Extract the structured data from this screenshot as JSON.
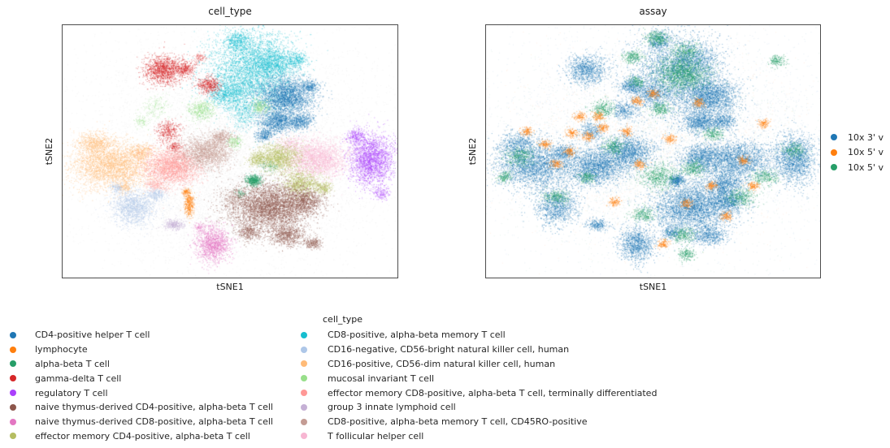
{
  "palette": {
    "blue": "#1f77b4",
    "orange": "#ff7f0e",
    "green": "#279e68",
    "red": "#d62728",
    "purple": "#aa40fc",
    "brown": "#8c564b",
    "pink": "#e377c2",
    "olive": "#b5bd61",
    "cyan": "#17becf",
    "lightblue": "#aec7e8",
    "lightorange": "#ffbb78",
    "lightgreen": "#98df8a",
    "salmon": "#ff9896",
    "lightpurple": "#c5b0d5",
    "rosybrown": "#c49c94",
    "lightpink": "#f7b6d2",
    "gray": "#b8b8b8"
  },
  "chart_data": [
    {
      "type": "scatter",
      "title": "cell_type",
      "xlabel": "tSNE1",
      "ylabel": "tSNE2",
      "axis_ticks": "none",
      "legend_title": "cell_type",
      "legend_position": "bottom-two-columns",
      "legend": [
        {
          "label": "CD4-positive helper T cell",
          "color": "#1f77b4"
        },
        {
          "label": "lymphocyte",
          "color": "#ff7f0e"
        },
        {
          "label": "alpha-beta T cell",
          "color": "#279e68"
        },
        {
          "label": "gamma-delta T cell",
          "color": "#d62728"
        },
        {
          "label": "regulatory T cell",
          "color": "#aa40fc"
        },
        {
          "label": "naive thymus-derived CD4-positive, alpha-beta T cell",
          "color": "#8c564b"
        },
        {
          "label": "naive thymus-derived CD8-positive, alpha-beta T cell",
          "color": "#e377c2"
        },
        {
          "label": "effector memory CD4-positive, alpha-beta T cell",
          "color": "#b5bd61"
        },
        {
          "label": "CD8-positive, alpha-beta memory T cell",
          "color": "#17becf"
        },
        {
          "label": "CD16-negative, CD56-bright natural killer cell, human",
          "color": "#aec7e8"
        },
        {
          "label": "CD16-positive, CD56-dim natural killer cell, human",
          "color": "#ffbb78"
        },
        {
          "label": "mucosal invariant T cell",
          "color": "#98df8a"
        },
        {
          "label": "effector memory CD8-positive, alpha-beta T cell, terminally differentiated",
          "color": "#ff9896"
        },
        {
          "label": "group 3 innate lymphoid cell",
          "color": "#c5b0d5"
        },
        {
          "label": "CD8-positive, alpha-beta memory T cell, CD45RO-positive",
          "color": "#c49c94"
        },
        {
          "label": "T follicular helper cell",
          "color": "#f7b6d2"
        }
      ],
      "blob_format": "[color, cx, cy, sx, sy, n, alpha?] normalized to axes box; gaussian cluster approximations of the t-SNE embedding",
      "blobs": [
        [
          "gray",
          0.52,
          0.42,
          0.24,
          0.22,
          6000,
          0.15
        ],
        [
          "gray",
          0.45,
          0.72,
          0.18,
          0.12,
          2500,
          0.15
        ],
        [
          "gray",
          0.66,
          0.6,
          0.14,
          0.14,
          1500,
          0.12
        ],
        [
          "cyan",
          0.565,
          0.185,
          0.065,
          0.085,
          4000
        ],
        [
          "cyan",
          0.52,
          0.06,
          0.018,
          0.018,
          350
        ],
        [
          "cyan",
          0.49,
          0.27,
          0.03,
          0.025,
          700
        ],
        [
          "cyan",
          0.625,
          0.145,
          0.035,
          0.03,
          900
        ],
        [
          "cyan",
          0.7,
          0.135,
          0.016,
          0.016,
          250
        ],
        [
          "cyan",
          0.54,
          0.35,
          0.02,
          0.03,
          400,
          0.35
        ],
        [
          "blue",
          0.667,
          0.281,
          0.042,
          0.038,
          2500
        ],
        [
          "blue",
          0.64,
          0.383,
          0.028,
          0.022,
          1000
        ],
        [
          "blue",
          0.712,
          0.38,
          0.018,
          0.016,
          450
        ],
        [
          "blue",
          0.6,
          0.437,
          0.013,
          0.012,
          250
        ],
        [
          "blue",
          0.74,
          0.24,
          0.012,
          0.012,
          200
        ],
        [
          "red",
          0.3,
          0.176,
          0.028,
          0.028,
          1300
        ],
        [
          "red",
          0.365,
          0.17,
          0.014,
          0.014,
          300
        ],
        [
          "red",
          0.435,
          0.236,
          0.017,
          0.017,
          450
        ],
        [
          "red",
          0.314,
          0.419,
          0.018,
          0.02,
          350
        ],
        [
          "red",
          0.333,
          0.479,
          0.012,
          0.012,
          150
        ],
        [
          "red",
          0.41,
          0.128,
          0.01,
          0.01,
          100,
          0.4
        ],
        [
          "lightgreen",
          0.413,
          0.335,
          0.02,
          0.02,
          450
        ],
        [
          "lightgreen",
          0.589,
          0.32,
          0.014,
          0.014,
          250
        ],
        [
          "lightgreen",
          0.512,
          0.46,
          0.012,
          0.012,
          180
        ],
        [
          "lightgreen",
          0.275,
          0.323,
          0.02,
          0.025,
          200,
          0.4
        ],
        [
          "lightgreen",
          0.234,
          0.383,
          0.012,
          0.012,
          100,
          0.4
        ],
        [
          "lightorange",
          0.145,
          0.553,
          0.06,
          0.047,
          3200
        ],
        [
          "lightorange",
          0.097,
          0.467,
          0.028,
          0.022,
          600
        ],
        [
          "lightorange",
          0.232,
          0.502,
          0.018,
          0.016,
          300
        ],
        [
          "lightorange",
          0.184,
          0.64,
          0.01,
          0.012,
          120
        ],
        [
          "salmon",
          0.326,
          0.559,
          0.042,
          0.037,
          2400
        ],
        [
          "salmon",
          0.275,
          0.633,
          0.015,
          0.012,
          200,
          0.4
        ],
        [
          "rosybrown",
          0.425,
          0.502,
          0.038,
          0.032,
          1900
        ],
        [
          "rosybrown",
          0.473,
          0.441,
          0.018,
          0.016,
          400
        ],
        [
          "lightpink",
          0.756,
          0.53,
          0.047,
          0.038,
          2400
        ],
        [
          "lightpink",
          0.679,
          0.47,
          0.02,
          0.016,
          300,
          0.45
        ],
        [
          "olive",
          0.645,
          0.524,
          0.033,
          0.028,
          1400
        ],
        [
          "olive",
          0.71,
          0.626,
          0.028,
          0.025,
          900
        ],
        [
          "olive",
          0.582,
          0.53,
          0.015,
          0.013,
          250
        ],
        [
          "olive",
          0.778,
          0.645,
          0.015,
          0.013,
          250
        ],
        [
          "purple",
          0.923,
          0.53,
          0.032,
          0.05,
          2200
        ],
        [
          "purple",
          0.874,
          0.438,
          0.015,
          0.015,
          250
        ],
        [
          "purple",
          0.95,
          0.665,
          0.012,
          0.012,
          150
        ],
        [
          "brown",
          0.616,
          0.719,
          0.06,
          0.05,
          4200
        ],
        [
          "brown",
          0.72,
          0.697,
          0.028,
          0.025,
          900
        ],
        [
          "brown",
          0.669,
          0.831,
          0.026,
          0.022,
          700
        ],
        [
          "brown",
          0.556,
          0.821,
          0.016,
          0.014,
          300
        ],
        [
          "brown",
          0.744,
          0.863,
          0.014,
          0.012,
          250
        ],
        [
          "brown",
          0.515,
          0.684,
          0.02,
          0.02,
          250,
          0.35
        ],
        [
          "pink",
          0.449,
          0.866,
          0.026,
          0.036,
          1400
        ],
        [
          "pink",
          0.41,
          0.802,
          0.01,
          0.01,
          120,
          0.4
        ],
        [
          "lightblue",
          0.21,
          0.719,
          0.032,
          0.036,
          1400
        ],
        [
          "lightblue",
          0.28,
          0.671,
          0.013,
          0.012,
          220
        ],
        [
          "lightblue",
          0.162,
          0.642,
          0.01,
          0.01,
          120
        ],
        [
          "orange",
          0.377,
          0.706,
          0.007,
          0.024,
          380
        ],
        [
          "orange",
          0.367,
          0.658,
          0.006,
          0.006,
          90
        ],
        [
          "lightpurple",
          0.333,
          0.789,
          0.016,
          0.011,
          320
        ],
        [
          "green",
          0.57,
          0.613,
          0.011,
          0.011,
          480
        ],
        [
          "green",
          0.613,
          0.559,
          0.015,
          0.012,
          120,
          0.35
        ],
        [
          "green",
          0.531,
          0.664,
          0.01,
          0.01,
          80,
          0.35
        ]
      ]
    },
    {
      "type": "scatter",
      "title": "assay",
      "xlabel": "tSNE1",
      "ylabel": "tSNE2",
      "axis_ticks": "none",
      "legend_position": "right (clipped at image edge)",
      "legend": [
        {
          "label": "10x 3' v",
          "color": "#1f77b4"
        },
        {
          "label": "10x 5' v",
          "color": "#ff7f0e"
        },
        {
          "label": "10x 5' v",
          "color": "#279e68"
        }
      ],
      "blob_format": "[color, cx, cy, sx, sy, n, alpha?] normalized to axes box",
      "blobs": [
        [
          "blue",
          0.52,
          0.45,
          0.25,
          0.23,
          5000,
          0.12
        ],
        [
          "green",
          0.5,
          0.5,
          0.25,
          0.22,
          2200,
          0.12
        ],
        [
          "orange",
          0.5,
          0.48,
          0.24,
          0.2,
          1500,
          0.12
        ],
        [
          "blue",
          0.565,
          0.185,
          0.065,
          0.085,
          3000
        ],
        [
          "blue",
          0.52,
          0.06,
          0.018,
          0.018,
          280
        ],
        [
          "blue",
          0.49,
          0.27,
          0.03,
          0.025,
          550
        ],
        [
          "blue",
          0.625,
          0.145,
          0.035,
          0.03,
          700
        ],
        [
          "blue",
          0.667,
          0.281,
          0.042,
          0.038,
          2000
        ],
        [
          "blue",
          0.64,
          0.383,
          0.028,
          0.022,
          850
        ],
        [
          "blue",
          0.712,
          0.38,
          0.018,
          0.016,
          380
        ],
        [
          "blue",
          0.3,
          0.176,
          0.028,
          0.028,
          950
        ],
        [
          "blue",
          0.435,
          0.236,
          0.017,
          0.017,
          380
        ],
        [
          "blue",
          0.413,
          0.335,
          0.02,
          0.02,
          350
        ],
        [
          "blue",
          0.145,
          0.553,
          0.06,
          0.047,
          2600
        ],
        [
          "blue",
          0.097,
          0.467,
          0.028,
          0.022,
          480
        ],
        [
          "blue",
          0.326,
          0.559,
          0.042,
          0.037,
          1900
        ],
        [
          "blue",
          0.425,
          0.502,
          0.038,
          0.032,
          1550
        ],
        [
          "blue",
          0.756,
          0.53,
          0.047,
          0.038,
          1900
        ],
        [
          "blue",
          0.645,
          0.524,
          0.033,
          0.028,
          1100
        ],
        [
          "blue",
          0.71,
          0.626,
          0.028,
          0.025,
          750
        ],
        [
          "blue",
          0.923,
          0.53,
          0.032,
          0.05,
          1700
        ],
        [
          "blue",
          0.616,
          0.719,
          0.06,
          0.05,
          3300
        ],
        [
          "blue",
          0.72,
          0.697,
          0.028,
          0.025,
          750
        ],
        [
          "blue",
          0.669,
          0.831,
          0.026,
          0.022,
          550
        ],
        [
          "blue",
          0.449,
          0.866,
          0.026,
          0.036,
          1050
        ],
        [
          "blue",
          0.21,
          0.719,
          0.032,
          0.036,
          1050
        ],
        [
          "blue",
          0.333,
          0.789,
          0.016,
          0.011,
          250
        ],
        [
          "blue",
          0.57,
          0.613,
          0.011,
          0.011,
          350
        ],
        [
          "blue",
          0.314,
          0.419,
          0.018,
          0.02,
          280
        ],
        [
          "blue",
          0.556,
          0.821,
          0.016,
          0.014,
          250
        ],
        [
          "blue",
          0.232,
          0.502,
          0.018,
          0.016,
          260
        ],
        [
          "green",
          0.583,
          0.19,
          0.04,
          0.035,
          1500
        ],
        [
          "green",
          0.51,
          0.05,
          0.018,
          0.015,
          330
        ],
        [
          "green",
          0.44,
          0.125,
          0.014,
          0.012,
          240
        ],
        [
          "green",
          0.35,
          0.33,
          0.018,
          0.018,
          300
        ],
        [
          "green",
          0.52,
          0.33,
          0.016,
          0.014,
          260
        ],
        [
          "green",
          0.6,
          0.1,
          0.02,
          0.018,
          300
        ],
        [
          "green",
          0.38,
          0.48,
          0.018,
          0.015,
          260
        ],
        [
          "green",
          0.1,
          0.52,
          0.022,
          0.02,
          340
        ],
        [
          "green",
          0.52,
          0.6,
          0.028,
          0.024,
          600
        ],
        [
          "green",
          0.62,
          0.565,
          0.018,
          0.015,
          300
        ],
        [
          "green",
          0.47,
          0.75,
          0.018,
          0.015,
          260
        ],
        [
          "green",
          0.59,
          0.83,
          0.018,
          0.015,
          280
        ],
        [
          "green",
          0.6,
          0.905,
          0.013,
          0.012,
          200
        ],
        [
          "green",
          0.835,
          0.6,
          0.02,
          0.016,
          280
        ],
        [
          "green",
          0.92,
          0.495,
          0.018,
          0.015,
          220
        ],
        [
          "green",
          0.87,
          0.14,
          0.012,
          0.012,
          180
        ],
        [
          "green",
          0.21,
          0.68,
          0.018,
          0.015,
          260
        ],
        [
          "green",
          0.3,
          0.6,
          0.013,
          0.012,
          180
        ],
        [
          "green",
          0.76,
          0.68,
          0.022,
          0.018,
          340
        ],
        [
          "green",
          0.68,
          0.43,
          0.015,
          0.013,
          220
        ],
        [
          "green",
          0.055,
          0.6,
          0.012,
          0.012,
          160
        ],
        [
          "green",
          0.45,
          0.225,
          0.012,
          0.012,
          160
        ],
        [
          "orange",
          0.12,
          0.42,
          0.009,
          0.009,
          130
        ],
        [
          "orange",
          0.175,
          0.47,
          0.009,
          0.009,
          130
        ],
        [
          "orange",
          0.21,
          0.55,
          0.009,
          0.009,
          130
        ],
        [
          "orange",
          0.25,
          0.5,
          0.009,
          0.009,
          130
        ],
        [
          "orange",
          0.305,
          0.44,
          0.009,
          0.009,
          130
        ],
        [
          "orange",
          0.35,
          0.405,
          0.009,
          0.009,
          130
        ],
        [
          "orange",
          0.28,
          0.36,
          0.009,
          0.009,
          130
        ],
        [
          "orange",
          0.42,
          0.42,
          0.009,
          0.009,
          130
        ],
        [
          "orange",
          0.385,
          0.7,
          0.009,
          0.009,
          130
        ],
        [
          "orange",
          0.46,
          0.55,
          0.009,
          0.009,
          130
        ],
        [
          "orange",
          0.55,
          0.45,
          0.009,
          0.009,
          130
        ],
        [
          "orange",
          0.635,
          0.305,
          0.009,
          0.009,
          130
        ],
        [
          "orange",
          0.5,
          0.27,
          0.009,
          0.009,
          130
        ],
        [
          "orange",
          0.77,
          0.535,
          0.009,
          0.009,
          130
        ],
        [
          "orange",
          0.8,
          0.635,
          0.009,
          0.009,
          130
        ],
        [
          "orange",
          0.675,
          0.635,
          0.009,
          0.009,
          130
        ],
        [
          "orange",
          0.72,
          0.755,
          0.009,
          0.009,
          130
        ],
        [
          "orange",
          0.6,
          0.705,
          0.009,
          0.009,
          130
        ],
        [
          "orange",
          0.83,
          0.39,
          0.009,
          0.009,
          130
        ],
        [
          "orange",
          0.45,
          0.3,
          0.009,
          0.009,
          130
        ],
        [
          "orange",
          0.255,
          0.425,
          0.009,
          0.009,
          130
        ],
        [
          "orange",
          0.53,
          0.865,
          0.009,
          0.009,
          130
        ],
        [
          "orange",
          0.335,
          0.36,
          0.009,
          0.009,
          130
        ]
      ]
    }
  ]
}
